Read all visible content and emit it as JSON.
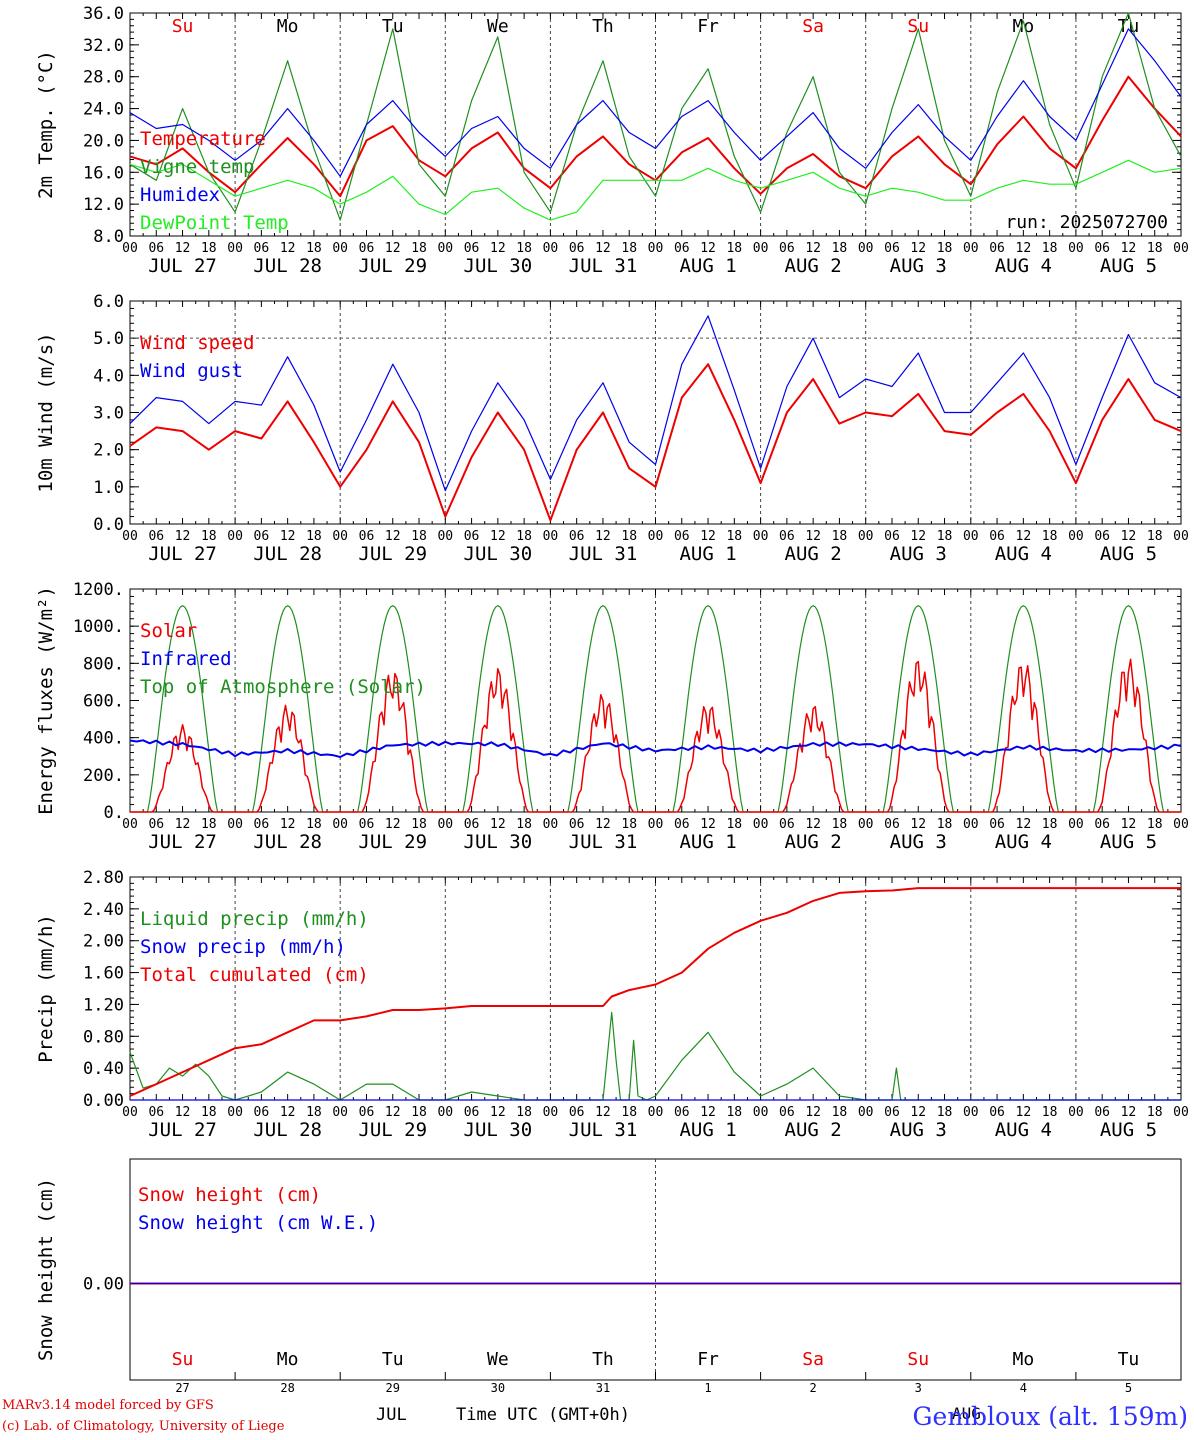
{
  "footer": {
    "model_line": "MARv3.14 model forced by GFS",
    "copyright_line": "(c) Lab. of Climatology, University of Liege",
    "month_label": "JUL",
    "time_axis_label": "Time UTC (GMT+0h)",
    "station": "Gembloux (alt. 159m)",
    "overlay_month": "AUG"
  },
  "colors": {
    "red": "#ee0000",
    "green": "#1f8f1f",
    "lightgreen": "#22ee22",
    "blue": "#0000ee",
    "weekend": "#ee0000"
  },
  "axis": {
    "days_total": 10,
    "hour_ticks": [
      "00",
      "06",
      "12",
      "18",
      "00",
      "06",
      "12",
      "18",
      "00",
      "06",
      "12",
      "18",
      "00",
      "06",
      "12",
      "18",
      "00",
      "06",
      "12",
      "18",
      "00",
      "06",
      "12",
      "18",
      "00",
      "06",
      "12",
      "18",
      "00",
      "06",
      "12",
      "18",
      "00",
      "06",
      "12",
      "18",
      "00",
      "06",
      "12",
      "18",
      "00"
    ],
    "day_labels": [
      "JUL 27",
      "JUL 28",
      "JUL 29",
      "JUL 30",
      "JUL 31",
      "AUG  1",
      "AUG  2",
      "AUG  3",
      "AUG  4",
      "AUG  5"
    ],
    "weekdays": [
      "Su",
      "Mo",
      "Tu",
      "We",
      "Th",
      "Fr",
      "Sa",
      "Su",
      "Mo",
      "Tu"
    ],
    "weekend_flags": [
      true,
      false,
      false,
      false,
      false,
      false,
      true,
      true,
      false,
      false
    ],
    "day_numbers": [
      "27",
      "28",
      "29",
      "30",
      "31",
      "1",
      "2",
      "3",
      "4",
      "5"
    ]
  },
  "chart_data": [
    {
      "type": "line",
      "ylabel": "2m Temp. (°C)",
      "ylim": [
        8,
        36
      ],
      "yticks": [
        "36.0",
        "32.0",
        "28.0",
        "24.0",
        "20.0",
        "16.0",
        "12.0",
        "8.0"
      ],
      "ytick_values": [
        36,
        32,
        28,
        24,
        20,
        16,
        12,
        8
      ],
      "weekdays_shown": true,
      "note": "run: 2025072700",
      "x_unit": "hours since JUL 27 00 UTC",
      "series": [
        {
          "name": "Temperature",
          "color": "red",
          "x": [
            0,
            6,
            12,
            18,
            24,
            30,
            36,
            42,
            48,
            54,
            60,
            66,
            72,
            78,
            84,
            90,
            96,
            102,
            108,
            114,
            120,
            126,
            132,
            138,
            144,
            150,
            156,
            162,
            168,
            174,
            180,
            186,
            192,
            198,
            204,
            210,
            216,
            222,
            228,
            234,
            240
          ],
          "values": [
            18.0,
            17.0,
            19.0,
            16.0,
            13.5,
            17.0,
            20.3,
            17.0,
            13.0,
            20.0,
            21.8,
            17.5,
            15.5,
            19.0,
            21.0,
            16.5,
            14.0,
            18.0,
            20.5,
            17.0,
            15.0,
            18.5,
            20.3,
            16.5,
            13.3,
            16.5,
            18.3,
            15.5,
            14.0,
            18.0,
            20.5,
            17.0,
            14.5,
            19.5,
            23.0,
            19.0,
            16.5,
            22.5,
            28.0,
            24.0,
            20.5
          ]
        },
        {
          "name": "Vigne temp",
          "color": "green",
          "x": [
            0,
            6,
            12,
            18,
            24,
            30,
            36,
            42,
            48,
            54,
            60,
            66,
            72,
            78,
            84,
            90,
            96,
            102,
            108,
            114,
            120,
            126,
            132,
            138,
            144,
            150,
            156,
            162,
            168,
            174,
            180,
            186,
            192,
            198,
            204,
            210,
            216,
            222,
            228,
            234,
            240
          ],
          "values": [
            17.0,
            15.0,
            24.0,
            16.0,
            11.0,
            20.0,
            30.0,
            19.0,
            10.0,
            22.0,
            34.0,
            17.0,
            13.0,
            25.0,
            33.0,
            16.0,
            11.0,
            22.0,
            30.0,
            18.0,
            13.0,
            24.0,
            29.0,
            18.0,
            11.0,
            21.0,
            28.0,
            16.0,
            12.0,
            24.0,
            34.0,
            20.0,
            13.0,
            26.0,
            35.0,
            22.0,
            14.0,
            28.0,
            36.0,
            24.0,
            18.0
          ]
        },
        {
          "name": "Humidex",
          "color": "blue",
          "x": [
            0,
            6,
            12,
            18,
            24,
            30,
            36,
            42,
            48,
            54,
            60,
            66,
            72,
            78,
            84,
            90,
            96,
            102,
            108,
            114,
            120,
            126,
            132,
            138,
            144,
            150,
            156,
            162,
            168,
            174,
            180,
            186,
            192,
            198,
            204,
            210,
            216,
            222,
            228,
            234,
            240
          ],
          "values": [
            23.5,
            21.5,
            22.0,
            20.0,
            17.5,
            20.0,
            24.0,
            20.0,
            15.5,
            22.0,
            25.0,
            21.0,
            18.0,
            21.5,
            23.0,
            19.0,
            16.5,
            22.0,
            25.0,
            21.0,
            19.0,
            23.0,
            25.0,
            21.0,
            17.5,
            20.5,
            23.5,
            19.0,
            16.5,
            21.0,
            24.5,
            20.5,
            17.5,
            23.0,
            27.5,
            23.0,
            20.0,
            27.0,
            34.0,
            30.0,
            25.5
          ]
        },
        {
          "name": "DewPoint Temp",
          "color": "lightgreen",
          "x": [
            0,
            6,
            12,
            18,
            24,
            30,
            36,
            42,
            48,
            54,
            60,
            66,
            72,
            78,
            84,
            90,
            96,
            102,
            108,
            114,
            120,
            126,
            132,
            138,
            144,
            150,
            156,
            162,
            168,
            174,
            180,
            186,
            192,
            198,
            204,
            210,
            216,
            222,
            228,
            234,
            240
          ],
          "values": [
            17.0,
            16.0,
            17.0,
            15.0,
            13.0,
            14.0,
            15.0,
            14.0,
            12.0,
            13.5,
            15.5,
            12.0,
            10.7,
            13.5,
            14.0,
            11.5,
            10.0,
            11.0,
            15.0,
            15.0,
            15.0,
            15.0,
            16.5,
            15.0,
            14.0,
            15.0,
            16.0,
            14.0,
            13.0,
            14.0,
            13.5,
            12.5,
            12.5,
            14.0,
            15.0,
            14.5,
            14.5,
            16.0,
            17.5,
            16.0,
            16.5
          ]
        }
      ]
    },
    {
      "type": "line",
      "ylabel": "10m Wind (m/s)",
      "ylim": [
        0,
        6
      ],
      "yticks": [
        "6.0",
        "5.0",
        "4.0",
        "3.0",
        "2.0",
        "1.0",
        "0.0"
      ],
      "ytick_values": [
        6,
        5,
        4,
        3,
        2,
        1,
        0
      ],
      "reference_line": 5.0,
      "x_unit": "hours since JUL 27 00 UTC",
      "series": [
        {
          "name": "Wind speed",
          "color": "red",
          "x": [
            0,
            6,
            12,
            18,
            24,
            30,
            36,
            42,
            48,
            54,
            60,
            66,
            72,
            78,
            84,
            90,
            96,
            102,
            108,
            114,
            120,
            126,
            132,
            138,
            144,
            150,
            156,
            162,
            168,
            174,
            180,
            186,
            192,
            198,
            204,
            210,
            216,
            222,
            228,
            234,
            240
          ],
          "values": [
            2.1,
            2.6,
            2.5,
            2.0,
            2.5,
            2.3,
            3.3,
            2.2,
            1.0,
            2.0,
            3.3,
            2.2,
            0.2,
            1.8,
            3.0,
            2.0,
            0.1,
            2.0,
            3.0,
            1.5,
            1.0,
            3.4,
            4.3,
            2.8,
            1.1,
            3.0,
            3.9,
            2.7,
            3.0,
            2.9,
            3.5,
            2.5,
            2.4,
            3.0,
            3.5,
            2.5,
            1.1,
            2.8,
            3.9,
            2.8,
            2.5
          ]
        },
        {
          "name": "Wind gust",
          "color": "blue",
          "x": [
            0,
            6,
            12,
            18,
            24,
            30,
            36,
            42,
            48,
            54,
            60,
            66,
            72,
            78,
            84,
            90,
            96,
            102,
            108,
            114,
            120,
            126,
            132,
            138,
            144,
            150,
            156,
            162,
            168,
            174,
            180,
            186,
            192,
            198,
            204,
            210,
            216,
            222,
            228,
            234,
            240
          ],
          "values": [
            2.7,
            3.4,
            3.3,
            2.7,
            3.3,
            3.2,
            4.5,
            3.2,
            1.4,
            2.8,
            4.3,
            3.0,
            0.9,
            2.5,
            3.8,
            2.8,
            1.2,
            2.8,
            3.8,
            2.2,
            1.6,
            4.3,
            5.6,
            3.6,
            1.5,
            3.7,
            5.0,
            3.4,
            3.9,
            3.7,
            4.6,
            3.0,
            3.0,
            3.8,
            4.6,
            3.4,
            1.6,
            3.4,
            5.1,
            3.8,
            3.4
          ]
        }
      ]
    },
    {
      "type": "line",
      "ylabel": "Energy fluxes (W/m²)",
      "ylim": [
        0,
        1200
      ],
      "yticks": [
        "1200.",
        "1000.",
        "800.",
        "600.",
        "400.",
        "200.",
        "0."
      ],
      "ytick_values": [
        1200,
        1000,
        800,
        600,
        400,
        200,
        0
      ],
      "x_unit": "hours since JUL 27 00 UTC",
      "toa_peak": 1110,
      "solar_daily_peaks": [
        470,
        580,
        770,
        780,
        640,
        590,
        580,
        830,
        820,
        830
      ],
      "series": [
        {
          "name": "Solar",
          "color": "red"
        },
        {
          "name": "Infrared",
          "color": "blue",
          "x": [
            0,
            12,
            24,
            36,
            48,
            60,
            72,
            84,
            96,
            108,
            120,
            132,
            144,
            156,
            168,
            180,
            192,
            204,
            216,
            228,
            240
          ],
          "values": [
            385,
            365,
            310,
            330,
            300,
            360,
            370,
            365,
            305,
            370,
            330,
            350,
            330,
            365,
            365,
            340,
            310,
            350,
            330,
            335,
            355
          ]
        },
        {
          "name": "Top of Atmosphere (Solar)",
          "color": "green"
        }
      ]
    },
    {
      "type": "line",
      "ylabel": "Precip (mm/h)",
      "ylim": [
        0,
        2.8
      ],
      "yticks": [
        "2.80",
        "2.40",
        "2.00",
        "1.60",
        "1.20",
        "0.80",
        "0.40",
        "0.00"
      ],
      "ytick_values": [
        2.8,
        2.4,
        2.0,
        1.6,
        1.2,
        0.8,
        0.4,
        0.0
      ],
      "x_unit": "hours since JUL 27 00 UTC",
      "series": [
        {
          "name": "Liquid precip (mm/h)",
          "color": "green",
          "x": [
            0,
            3,
            6,
            9,
            12,
            15,
            18,
            21,
            24,
            30,
            36,
            42,
            48,
            54,
            60,
            66,
            72,
            78,
            84,
            90,
            96,
            102,
            108,
            110,
            111,
            112,
            114,
            115,
            116,
            118,
            120,
            126,
            132,
            138,
            144,
            150,
            156,
            162,
            168,
            174,
            175,
            176,
            178,
            180,
            240
          ],
          "values": [
            0.6,
            0.15,
            0.2,
            0.4,
            0.3,
            0.45,
            0.3,
            0.05,
            0.0,
            0.1,
            0.35,
            0.2,
            0.0,
            0.2,
            0.2,
            0.0,
            0.0,
            0.1,
            0.05,
            0.0,
            0.0,
            0.0,
            0.0,
            1.1,
            0.5,
            0.0,
            0.0,
            0.75,
            0.05,
            0.0,
            0.05,
            0.5,
            0.85,
            0.35,
            0.05,
            0.2,
            0.4,
            0.05,
            0.0,
            0.0,
            0.4,
            0.0,
            0.0,
            0.0,
            0.0
          ]
        },
        {
          "name": "Snow precip (mm/h)",
          "color": "blue",
          "x": [
            0,
            240
          ],
          "values": [
            0.0,
            0.0
          ]
        },
        {
          "name": "Total cumulated (cm)",
          "color": "red",
          "x": [
            0,
            6,
            12,
            18,
            24,
            30,
            36,
            42,
            48,
            54,
            60,
            66,
            72,
            78,
            84,
            90,
            96,
            102,
            108,
            110,
            114,
            120,
            126,
            132,
            138,
            144,
            150,
            156,
            162,
            168,
            174,
            180,
            240
          ],
          "values": [
            0.05,
            0.2,
            0.35,
            0.5,
            0.65,
            0.7,
            0.85,
            1.0,
            1.0,
            1.05,
            1.13,
            1.13,
            1.15,
            1.18,
            1.18,
            1.18,
            1.18,
            1.18,
            1.18,
            1.3,
            1.38,
            1.45,
            1.6,
            1.9,
            2.1,
            2.25,
            2.35,
            2.5,
            2.6,
            2.62,
            2.63,
            2.66,
            2.66
          ]
        }
      ]
    },
    {
      "type": "line",
      "ylabel": "Snow height (cm)",
      "yticks": [
        "0.00"
      ],
      "ytick_values": [
        0.0
      ],
      "x_unit": "hours since JUL 27 00 UTC",
      "series": [
        {
          "name": "Snow height (cm)",
          "color": "red",
          "x": [
            0,
            240
          ],
          "values": [
            0.0,
            0.0
          ]
        },
        {
          "name": "Snow height (cm W.E.)",
          "color": "blue",
          "x": [
            0,
            240
          ],
          "values": [
            0.0,
            0.0
          ]
        }
      ]
    }
  ]
}
